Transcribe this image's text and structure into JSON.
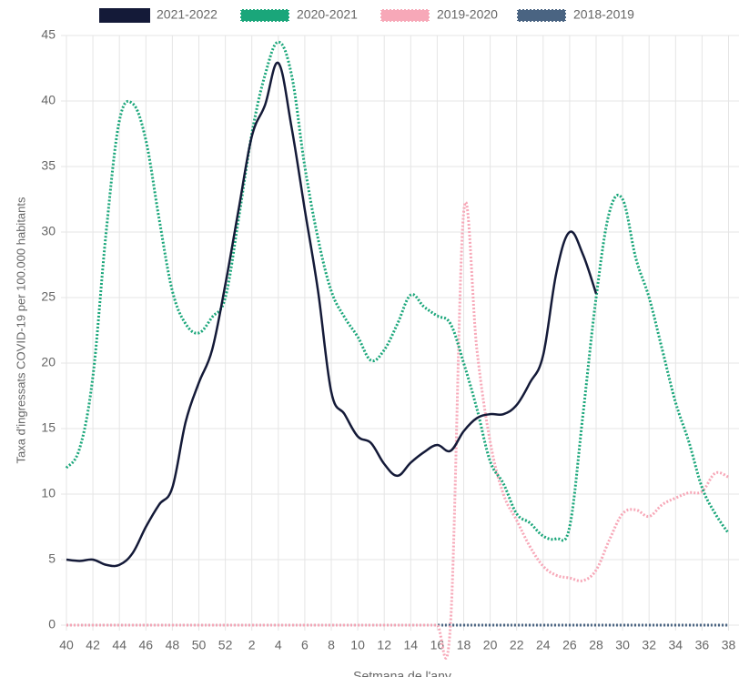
{
  "chart_data": {
    "type": "line",
    "y_label": "Taxa d'ingressats COVID-19 per 100.000 habitants",
    "x_label": "Setmana de l'any",
    "categories": [
      "40",
      null,
      "42",
      null,
      "44",
      null,
      "46",
      null,
      "48",
      null,
      "50",
      null,
      "52",
      null,
      "2",
      null,
      "4",
      null,
      "6",
      null,
      "8",
      null,
      "10",
      null,
      "12",
      null,
      "14",
      null,
      "16",
      null,
      "18",
      null,
      "20",
      null,
      "22",
      null,
      "24",
      null,
      "26",
      null,
      "28",
      null,
      "30",
      null,
      "32",
      null,
      "34",
      null,
      "36",
      null,
      "38"
    ],
    "ylim": [
      0,
      45
    ],
    "yticks": [
      0,
      5,
      10,
      15,
      20,
      25,
      30,
      35,
      40,
      45
    ],
    "grid": true,
    "legend": "top",
    "series": [
      {
        "name": "2021-2022",
        "color": "#141a38",
        "dotted": false,
        "values": [
          5,
          4.9,
          5,
          4.6,
          4.6,
          5.5,
          7.5,
          9.2,
          10.5,
          15.5,
          18.5,
          21,
          26,
          31.7,
          37.3,
          39.7,
          42.9,
          38,
          31.7,
          25.5,
          17.8,
          16.1,
          14.4,
          13.9,
          12.3,
          11.4,
          12.4,
          13.2,
          13.75,
          13.3,
          14.8,
          15.8,
          16.1,
          16.1,
          16.8,
          18.5,
          20.6,
          26.9,
          30,
          28.3,
          25.3,
          null,
          null,
          null,
          null,
          null,
          null,
          null,
          null,
          null,
          null
        ]
      },
      {
        "name": "2020-2021",
        "color": "#1aa67a",
        "dotted": true,
        "values": [
          12,
          13.5,
          19,
          30,
          38.5,
          39.8,
          37,
          31,
          25.5,
          23,
          22.3,
          23.5,
          25,
          31,
          37.5,
          42,
          44.5,
          42,
          35,
          29.5,
          25.5,
          23.5,
          22,
          20.2,
          21,
          23,
          25.2,
          24.3,
          23.6,
          23,
          20,
          16.5,
          12.5,
          10.8,
          8.5,
          7.8,
          6.8,
          6.6,
          7.5,
          16,
          25,
          31.5,
          32.5,
          28,
          25,
          21,
          17,
          14,
          10.5,
          8.5,
          7
        ]
      },
      {
        "name": "2019-2020",
        "color": "#f7a8b8",
        "dotted": true,
        "values": [
          0,
          0,
          0,
          0,
          0,
          0,
          0,
          0,
          0,
          0,
          0,
          0,
          0,
          0,
          0,
          0,
          0,
          0,
          0,
          0,
          0,
          0,
          0,
          0,
          0,
          0,
          0,
          0,
          0,
          0,
          31.5,
          21,
          14,
          10,
          8,
          6,
          4.5,
          3.8,
          3.6,
          3.4,
          4.2,
          6.5,
          8.5,
          8.8,
          8.3,
          9.2,
          9.7,
          10.1,
          10.2,
          11.6,
          11.3
        ]
      },
      {
        "name": "2018-2019",
        "color": "#4a6482",
        "dotted": true,
        "values": [
          0,
          0,
          0,
          0,
          0,
          0,
          0,
          0,
          0,
          0,
          0,
          0,
          0,
          0,
          0,
          0,
          0,
          0,
          0,
          0,
          0,
          0,
          0,
          0,
          0,
          0,
          0,
          0,
          0,
          0,
          0,
          0,
          0,
          0,
          0,
          0,
          0,
          0,
          0,
          0,
          0,
          0,
          0,
          0,
          0,
          0,
          0,
          0,
          0,
          0,
          0
        ]
      }
    ]
  }
}
